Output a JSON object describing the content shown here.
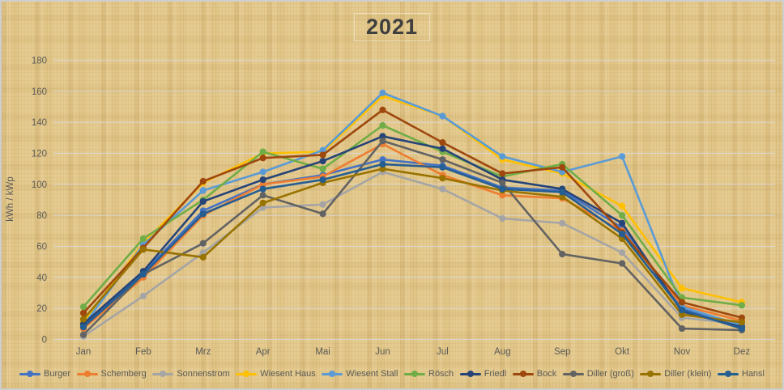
{
  "chart_data": {
    "type": "line",
    "title": "2021",
    "ylabel": "kWh / kWp",
    "ylim": [
      0,
      180
    ],
    "ytick_step": 20,
    "yticks": [
      0,
      20,
      40,
      60,
      80,
      100,
      120,
      140,
      160,
      180
    ],
    "grid": "horizontal",
    "legend_position": "bottom",
    "marker": "circle",
    "categories": [
      "Jan",
      "Feb",
      "Mrz",
      "Apr",
      "Mai",
      "Jun",
      "Jul",
      "Aug",
      "Sep",
      "Okt",
      "Nov",
      "Dez"
    ],
    "series": [
      {
        "name": "Burger",
        "color": "#4472C4",
        "values": [
          9,
          43,
          83,
          100,
          106,
          116,
          112,
          98,
          96,
          72,
          20,
          9
        ]
      },
      {
        "name": "Schemberg",
        "color": "#ED7D31",
        "values": [
          7,
          40,
          80,
          100,
          105,
          126,
          106,
          93,
          91,
          70,
          22,
          12
        ]
      },
      {
        "name": "Sonnenstrom",
        "color": "#A5A5A5",
        "values": [
          2,
          28,
          56,
          85,
          87,
          108,
          97,
          78,
          75,
          56,
          14,
          10
        ]
      },
      {
        "name": "Wiesent Haus",
        "color": "#FFC000",
        "values": [
          11,
          62,
          101,
          120,
          121,
          157,
          144,
          116,
          107,
          86,
          33,
          24
        ]
      },
      {
        "name": "Wiesent Stall",
        "color": "#5B9BD5",
        "values": [
          9,
          61,
          96,
          108,
          122,
          159,
          144,
          118,
          108,
          118,
          21,
          9
        ]
      },
      {
        "name": "Rösch",
        "color": "#70AD47",
        "values": [
          21,
          65,
          90,
          121,
          110,
          138,
          121,
          105,
          113,
          80,
          27,
          22
        ]
      },
      {
        "name": "Friedl",
        "color": "#264478",
        "values": [
          10,
          44,
          89,
          103,
          115,
          131,
          123,
          103,
          97,
          75,
          18,
          8
        ]
      },
      {
        "name": "Bock",
        "color": "#9E480E",
        "values": [
          17,
          59,
          102,
          117,
          119,
          148,
          127,
          107,
          111,
          69,
          24,
          14
        ]
      },
      {
        "name": "Diller (groß)",
        "color": "#636363",
        "values": [
          3,
          42,
          62,
          93,
          81,
          128,
          116,
          101,
          55,
          49,
          7,
          6
        ]
      },
      {
        "name": "Diller (klein)",
        "color": "#997300",
        "values": [
          13,
          58,
          53,
          88,
          101,
          110,
          104,
          96,
          92,
          65,
          16,
          11
        ]
      },
      {
        "name": "Hansl",
        "color": "#255E91",
        "values": [
          8,
          42,
          81,
          97,
          103,
          113,
          111,
          97,
          95,
          68,
          19,
          7
        ]
      }
    ],
    "style": {
      "background": "#e5cb90",
      "gridline_color": "#d9d9d9",
      "tick_label_color": "#595957",
      "title_color": "#3f3f3f"
    }
  }
}
